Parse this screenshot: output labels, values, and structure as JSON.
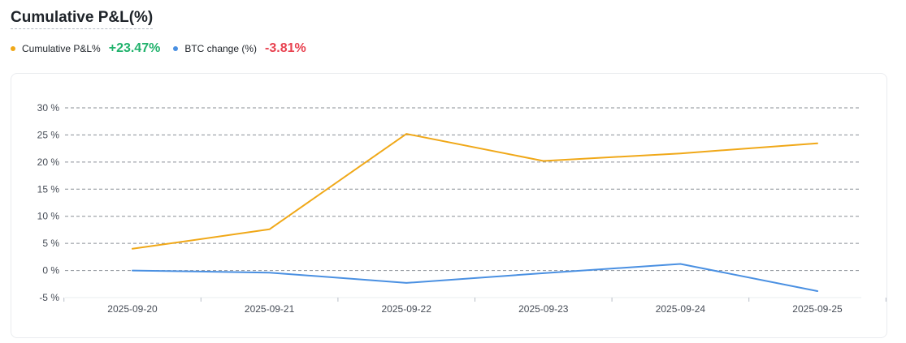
{
  "header": {
    "title": "Cumulative P&L(%)"
  },
  "legend": [
    {
      "label": "Cumulative P&L%",
      "value": "+23.47%",
      "color": "#f0a818",
      "value_color": "#20b26c"
    },
    {
      "label": "BTC change (%)",
      "value": "-3.81%",
      "color": "#4a90e2",
      "value_color": "#e8414f"
    }
  ],
  "chart_data": {
    "type": "line",
    "x": [
      "2025-09-20",
      "2025-09-21",
      "2025-09-22",
      "2025-09-23",
      "2025-09-24",
      "2025-09-25"
    ],
    "series": [
      {
        "name": "Cumulative P&L%",
        "values": [
          4.0,
          7.6,
          25.2,
          20.2,
          21.6,
          23.47
        ],
        "color": "#f0a818"
      },
      {
        "name": "BTC change (%)",
        "values": [
          0.0,
          -0.4,
          -2.3,
          -0.5,
          1.2,
          -3.81
        ],
        "color": "#4a90e2"
      }
    ],
    "yticks": [
      "30 %",
      "25 %",
      "20 %",
      "15 %",
      "10 %",
      "5 %",
      "0 %",
      "-5 %"
    ],
    "ytick_values": [
      30,
      25,
      20,
      15,
      10,
      5,
      0,
      -5
    ],
    "ylim": [
      -5,
      30
    ],
    "grid": true,
    "grid_color": "#8a8f96"
  }
}
